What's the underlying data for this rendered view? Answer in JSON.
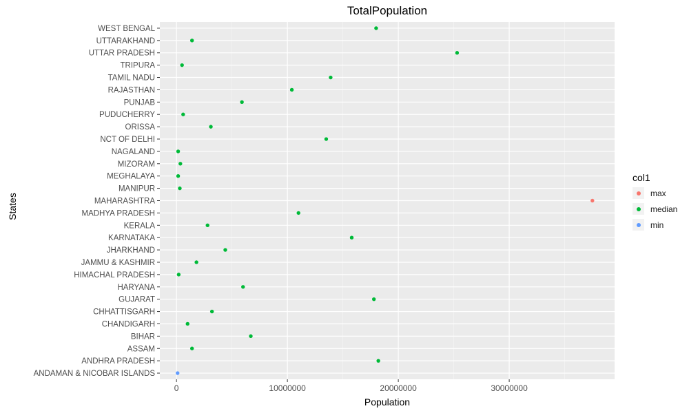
{
  "chart_data": {
    "type": "scatter",
    "title": "TotalPopulation",
    "xlabel": "Population",
    "ylabel": "States",
    "xlim": [
      -1500000,
      39500000
    ],
    "x_ticks": [
      0,
      10000000,
      20000000,
      30000000
    ],
    "x_tick_labels": [
      "0",
      "10000000",
      "20000000",
      "30000000"
    ],
    "grid": true,
    "legend_position": "right",
    "legend_title": "col1",
    "categories": [
      "ANDAMAN & NICOBAR ISLANDS",
      "ANDHRA PRADESH",
      "ASSAM",
      "BIHAR",
      "CHANDIGARH",
      "CHHATTISGARH",
      "GUJARAT",
      "HARYANA",
      "HIMACHAL PRADESH",
      "JAMMU & KASHMIR",
      "JHARKHAND",
      "KARNATAKA",
      "KERALA",
      "MADHYA PRADESH",
      "MAHARASHTRA",
      "MANIPUR ",
      "MEGHALAYA",
      "MIZORAM",
      "NAGALAND",
      "NCT OF DELHI",
      "ORISSA",
      "PUDUCHERRY",
      "PUNJAB",
      "RAJASTHAN",
      "TAMIL NADU",
      "TRIPURA",
      "UTTAR PRADESH",
      "UTTARAKHAND",
      "WEST BENGAL"
    ],
    "series": [
      {
        "name": "max",
        "color": "#F8766D",
        "points": [
          {
            "state": "MAHARASHTRA",
            "value": 37500000
          }
        ]
      },
      {
        "name": "median",
        "color": "#00BA38",
        "points": [
          {
            "state": "ANDHRA PRADESH",
            "value": 18200000
          },
          {
            "state": "ASSAM",
            "value": 1400000
          },
          {
            "state": "BIHAR",
            "value": 6700000
          },
          {
            "state": "CHANDIGARH",
            "value": 1000000
          },
          {
            "state": "CHHATTISGARH",
            "value": 3200000
          },
          {
            "state": "GUJARAT",
            "value": 17800000
          },
          {
            "state": "HARYANA",
            "value": 6000000
          },
          {
            "state": "HIMACHAL PRADESH",
            "value": 200000
          },
          {
            "state": "JAMMU & KASHMIR",
            "value": 1800000
          },
          {
            "state": "JHARKHAND",
            "value": 4400000
          },
          {
            "state": "KARNATAKA",
            "value": 15800000
          },
          {
            "state": "KERALA",
            "value": 2800000
          },
          {
            "state": "MADHYA PRADESH",
            "value": 11000000
          },
          {
            "state": "MANIPUR ",
            "value": 300000
          },
          {
            "state": "MEGHALAYA",
            "value": 150000
          },
          {
            "state": "MIZORAM",
            "value": 350000
          },
          {
            "state": "NAGALAND",
            "value": 150000
          },
          {
            "state": "NCT OF DELHI",
            "value": 13500000
          },
          {
            "state": "ORISSA",
            "value": 3100000
          },
          {
            "state": "PUDUCHERRY",
            "value": 600000
          },
          {
            "state": "PUNJAB",
            "value": 5900000
          },
          {
            "state": "RAJASTHAN",
            "value": 10400000
          },
          {
            "state": "TAMIL NADU",
            "value": 13900000
          },
          {
            "state": "TRIPURA",
            "value": 500000
          },
          {
            "state": "UTTAR PRADESH",
            "value": 25300000
          },
          {
            "state": "UTTARAKHAND",
            "value": 1400000
          },
          {
            "state": "WEST BENGAL",
            "value": 18000000
          }
        ]
      },
      {
        "name": "min",
        "color": "#619CFF",
        "points": [
          {
            "state": "ANDAMAN & NICOBAR ISLANDS",
            "value": 100000
          }
        ]
      }
    ]
  }
}
